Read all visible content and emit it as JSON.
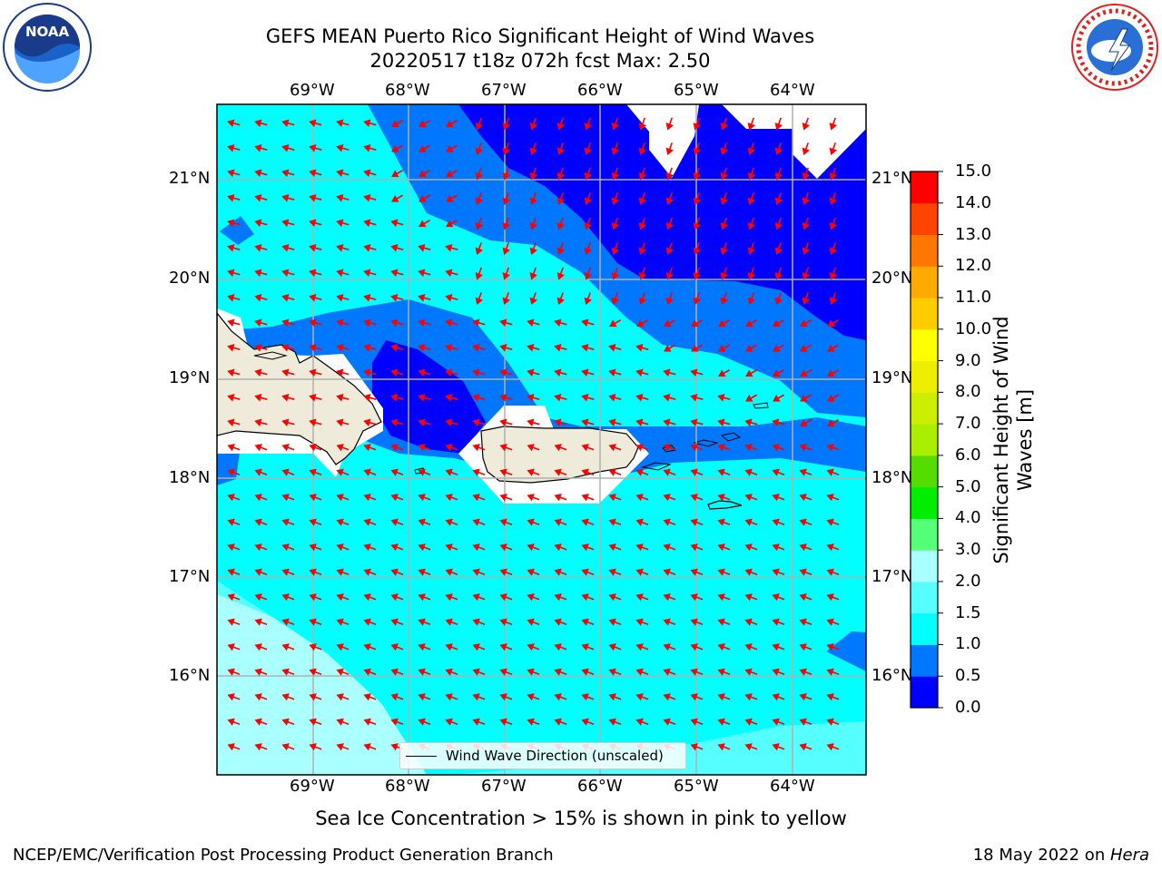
{
  "header": {
    "title_line1": "GEFS MEAN Puerto Rico Significant Height of Wind Waves",
    "title_line2": "20220517 t18z 072h fcst   Max: 2.50"
  },
  "logos": {
    "left": "noaa-logo",
    "right": "nws-logo",
    "left_text": "NOAA"
  },
  "map": {
    "lon_ticks": [
      "69°W",
      "68°W",
      "67°W",
      "66°W",
      "65°W",
      "64°W"
    ],
    "lat_ticks": [
      "21°N",
      "20°N",
      "19°N",
      "18°N",
      "17°N",
      "16°N"
    ],
    "colors": {
      "c0": "#0000ff",
      "c05": "#0077ff",
      "c1": "#00ffff",
      "c15": "#55ffff",
      "c2": "#aaffff",
      "land": "#efebdb",
      "arrow": "#ff0000",
      "grid": "#b0b0b0"
    },
    "legend_text": "Wind Wave Direction (unscaled)"
  },
  "colorbar": {
    "label": "Significant Height of Wind Waves [m]",
    "levels": [
      "0.0",
      "0.5",
      "1.0",
      "1.5",
      "2.0",
      "3.0",
      "4.0",
      "5.0",
      "6.0",
      "7.0",
      "8.0",
      "9.0",
      "10.0",
      "11.0",
      "12.0",
      "13.0",
      "14.0",
      "15.0"
    ],
    "colors": [
      "#0000ff",
      "#0077ff",
      "#00ffff",
      "#55ffff",
      "#aaffff",
      "#55ff77",
      "#00ee00",
      "#55dd00",
      "#aaee00",
      "#ccee00",
      "#eeee00",
      "#ffff00",
      "#ffcc00",
      "#ffaa00",
      "#ff7700",
      "#ff4400",
      "#ff0000"
    ]
  },
  "caption": "Sea Ice Concentration > 15% is shown in pink to yellow",
  "footer": {
    "left": "NCEP/EMC/Verification Post Processing Product Generation Branch",
    "right_prefix": "18 May 2022 on ",
    "right_machine": "Hera"
  }
}
